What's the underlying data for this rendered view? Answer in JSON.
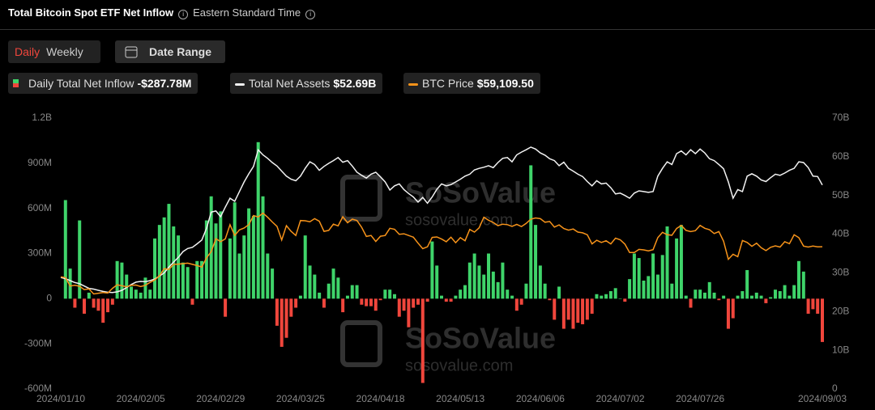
{
  "header": {
    "title": "Total Bitcoin Spot ETF Net Inflow",
    "timezone": "Eastern Standard Time"
  },
  "controls": {
    "daily": "Daily",
    "weekly": "Weekly",
    "date_range": "Date Range"
  },
  "watermark": {
    "brand": "SoSoValue",
    "site": "sosovalue.com"
  },
  "chart_data": {
    "type": "bar-line",
    "categories": [
      "2024/01/10",
      null,
      null,
      null,
      null,
      null,
      null,
      null,
      null,
      null,
      null,
      null,
      null,
      null,
      null,
      null,
      null,
      "2024/02/05",
      null,
      null,
      null,
      null,
      null,
      null,
      null,
      null,
      null,
      null,
      null,
      null,
      null,
      null,
      null,
      null,
      "2024/02/29",
      null,
      null,
      null,
      null,
      null,
      null,
      null,
      null,
      null,
      null,
      null,
      null,
      null,
      null,
      null,
      null,
      "2024/03/25",
      null,
      null,
      null,
      null,
      null,
      null,
      null,
      null,
      null,
      null,
      null,
      null,
      null,
      null,
      null,
      null,
      "2024/04/18",
      null,
      null,
      null,
      null,
      null,
      null,
      null,
      null,
      null,
      null,
      null,
      null,
      null,
      null,
      null,
      null,
      "2024/05/13",
      null,
      null,
      null,
      null,
      null,
      null,
      null,
      null,
      null,
      null,
      null,
      null,
      null,
      null,
      null,
      null,
      "2024/06/06",
      null,
      null,
      null,
      null,
      null,
      null,
      null,
      null,
      null,
      null,
      null,
      null,
      null,
      null,
      null,
      null,
      "2024/07/02",
      null,
      null,
      null,
      null,
      null,
      null,
      null,
      null,
      null,
      null,
      null,
      null,
      null,
      null,
      null,
      null,
      "2024/07/26",
      null,
      null,
      null,
      null,
      null,
      null,
      null,
      null,
      null,
      null,
      null,
      null,
      null,
      null,
      null,
      null,
      null,
      null,
      null,
      null,
      null,
      null,
      null,
      null,
      null,
      "2024/09/03"
    ],
    "ylim": [
      -600,
      1200
    ],
    "yticks": [
      {
        "value": -600,
        "label": "-600M"
      },
      {
        "value": -300,
        "label": "-300M"
      },
      0,
      {
        "value": 300,
        "label": "300M"
      },
      {
        "value": 600,
        "label": "600M"
      },
      {
        "value": 900,
        "label": "900M"
      },
      {
        "value": 1200,
        "label": "1.2B"
      }
    ],
    "y2lim": [
      0,
      70
    ],
    "y2ticks": [
      0,
      {
        "value": 10,
        "label": "10B"
      },
      {
        "value": 20,
        "label": "20B"
      },
      {
        "value": 30,
        "label": "30B"
      },
      {
        "value": 40,
        "label": "40B"
      },
      {
        "value": 50,
        "label": "50B"
      },
      {
        "value": 60,
        "label": "60B"
      },
      {
        "value": 70,
        "label": "70B"
      }
    ],
    "y3lim": [
      0,
      112600
    ],
    "series": [
      {
        "name": "Daily Total Net Inflow",
        "type": "bar",
        "color": "#3fd46a",
        "negative_color": "#f0463c",
        "latest_label": "-$287.78M",
        "values": [
          null,
          655,
          200,
          -60,
          520,
          -100,
          40,
          -60,
          -80,
          -160,
          -90,
          -40,
          250,
          240,
          160,
          80,
          60,
          40,
          140,
          60,
          400,
          490,
          540,
          630,
          480,
          420,
          240,
          210,
          -40,
          250,
          250,
          520,
          680,
          500,
          580,
          -120,
          400,
          640,
          300,
          420,
          600,
          550,
          1040,
          680,
          300,
          200,
          -180,
          -320,
          -260,
          -120,
          -60,
          20,
          420,
          220,
          160,
          40,
          -60,
          100,
          200,
          140,
          -90,
          20,
          90,
          90,
          -40,
          -50,
          -50,
          -80,
          -10,
          60,
          60,
          30,
          -120,
          -80,
          -190,
          -60,
          -40,
          -560,
          -20,
          380,
          220,
          20,
          -20,
          -20,
          20,
          60,
          90,
          240,
          300,
          220,
          160,
          300,
          180,
          110,
          240,
          60,
          20,
          -80,
          -40,
          100,
          886,
          490,
          220,
          100,
          -10,
          -140,
          80,
          -200,
          -140,
          -200,
          -160,
          -170,
          -140,
          -100,
          30,
          20,
          30,
          50,
          70,
          0,
          -20,
          130,
          300,
          270,
          120,
          150,
          300,
          160,
          290,
          480,
          100,
          400,
          490,
          20,
          -60,
          60,
          60,
          40,
          110,
          40,
          -10,
          20,
          -200,
          -130,
          20,
          50,
          190,
          20,
          40,
          20,
          -30,
          10,
          60,
          50,
          90,
          20,
          90,
          250,
          180,
          -100,
          -70,
          -100,
          -287.78
        ]
      },
      {
        "name": "Total Net Assets",
        "type": "line",
        "axis": "y2",
        "color": "#f2f2f2",
        "latest_label": "$52.69B",
        "values": [
          28.8,
          28.5,
          28.0,
          27.5,
          27.2,
          26.6,
          26.0,
          25.8,
          25.5,
          25.2,
          25.0,
          24.9,
          25.1,
          25.5,
          26.2,
          27.0,
          27.6,
          27.8,
          27.7,
          28.0,
          28.4,
          29.2,
          30.0,
          31.5,
          32.8,
          34.0,
          35.5,
          36.3,
          36.6,
          37.5,
          38.5,
          41.5,
          45.7,
          46.0,
          44.5,
          47.0,
          49.3,
          48.5,
          51.0,
          53.5,
          55.6,
          57.5,
          61.8,
          60.5,
          59.6,
          58.5,
          57.6,
          56.3,
          55.0,
          54.2,
          53.8,
          55.0,
          57.0,
          58.7,
          58.0,
          56.5,
          57.5,
          58.3,
          59.0,
          59.8,
          58.6,
          59.0,
          57.6,
          56.0,
          55.2,
          54.5,
          55.5,
          56.0,
          54.8,
          53.5,
          51.4,
          52.5,
          53.0,
          51.5,
          50.5,
          49.6,
          48.3,
          49.5,
          48.0,
          49.6,
          51.6,
          53.0,
          52.5,
          52.8,
          53.5,
          54.2,
          55.0,
          55.5,
          56.6,
          57.0,
          57.3,
          57.7,
          57.2,
          58.5,
          59.6,
          59.8,
          58.7,
          60.5,
          61.2,
          61.8,
          62.5,
          62.0,
          61.0,
          60.4,
          59.5,
          59.0,
          57.7,
          58.6,
          57.0,
          56.3,
          55.5,
          54.9,
          53.6,
          52.5,
          53.8,
          53.0,
          53.2,
          52.0,
          50.4,
          50.6,
          50.0,
          49.3,
          50.6,
          51.2,
          51.0,
          50.8,
          51.0,
          55.0,
          57.0,
          58.7,
          58.0,
          60.8,
          61.5,
          60.5,
          61.8,
          60.8,
          62.0,
          61.0,
          59.5,
          59.0,
          58.0,
          56.9,
          53.5,
          49.3,
          51.5,
          51.0,
          55.0,
          55.6,
          55.0,
          54.0,
          53.6,
          54.6,
          55.5,
          55.2,
          55.8,
          56.5,
          57.0,
          58.7,
          58.5,
          57.2,
          55.0,
          54.9,
          52.69
        ]
      },
      {
        "name": "BTC Price",
        "type": "line",
        "axis": "y3",
        "color": "#f7931a",
        "latest_label": "$59,109.50",
        "values": [
          46600,
          46300,
          42800,
          43100,
          42700,
          41300,
          41600,
          39500,
          39800,
          40100,
          39900,
          41800,
          43300,
          42900,
          42500,
          43100,
          43200,
          42600,
          43100,
          44300,
          45300,
          47100,
          50000,
          49700,
          51800,
          51900,
          52100,
          52300,
          51800,
          51300,
          50700,
          54500,
          57100,
          62500,
          61200,
          62400,
          68300,
          63800,
          66100,
          66900,
          68300,
          72100,
          71500,
          73100,
          71400,
          69400,
          67600,
          61900,
          67900,
          65500,
          63800,
          70000,
          69900,
          69500,
          70800,
          69700,
          65500,
          65900,
          68500,
          67800,
          71600,
          69100,
          70600,
          70000,
          67200,
          63400,
          63800,
          61300,
          63500,
          63800,
          66800,
          66400,
          64300,
          64500,
          63800,
          63100,
          60600,
          58300,
          59100,
          63000,
          63200,
          62300,
          61200,
          63100,
          60800,
          62900,
          61600,
          66300,
          65200,
          67000,
          71400,
          70100,
          69200,
          67900,
          68500,
          68300,
          67600,
          68400,
          67500,
          68800,
          70600,
          71100,
          70800,
          69300,
          69600,
          67300,
          68200,
          66700,
          66000,
          66500,
          65200,
          64900,
          64100,
          60300,
          61800,
          60900,
          61600,
          60300,
          62700,
          62000,
          60200,
          56700,
          56700,
          58000,
          57800,
          57400,
          57900,
          62900,
          65100,
          64100,
          63900,
          66700,
          68000,
          65900,
          65400,
          65800,
          68000,
          66800,
          66200,
          64600,
          65400,
          61400,
          53900,
          56000,
          55000,
          61700,
          60900,
          59300,
          60600,
          58700,
          57500,
          58900,
          59500,
          59000,
          61200,
          60400,
          64100,
          62900,
          59400,
          59000,
          59400,
          59100,
          59109.5
        ]
      }
    ]
  }
}
